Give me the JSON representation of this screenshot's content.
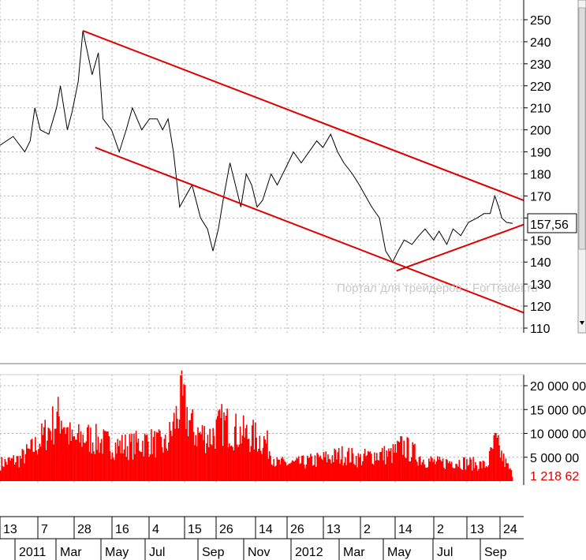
{
  "watermark": "Портал для трейдеров - ForTrader.ru",
  "price_tick_labels": [
    "250",
    "240",
    "230",
    "220",
    "210",
    "200",
    "190",
    "180",
    "170",
    "160",
    "150",
    "140",
    "130",
    "120",
    "110"
  ],
  "volume_tick_labels": [
    "20 000 00",
    "15 000 00",
    "10 000 00",
    "5 000 00"
  ],
  "current_price_label": "157,56",
  "current_volume_label": "1 218 62",
  "day_tick_labels": [
    "13",
    "7",
    "28",
    "16",
    "4",
    "15",
    "26",
    "14",
    "26",
    "13",
    "2",
    "14",
    "2",
    "13",
    "24"
  ],
  "month_labels": [
    "2011",
    "Mar",
    "May",
    "Jul",
    "Sep",
    "Nov",
    "2012",
    "Mar",
    "May",
    "Jul",
    "Sep"
  ],
  "colors": {
    "price_line": "#000000",
    "trend_line": "#e00000",
    "volume_bar": "#ff0000",
    "grid": "#b0b0b0",
    "label_bg": "#ff0000"
  },
  "chart_data": [
    {
      "type": "line",
      "x_range": [
        "2010-12-13",
        "2012-10-05"
      ],
      "ylim": [
        110,
        252
      ],
      "grid": true,
      "series": [
        {
          "values": [
            [
              "2010-12-13",
              193
            ],
            [
              "2010-12-30",
              197
            ],
            [
              "2011-01-14",
              190
            ],
            [
              "2011-01-21",
              195
            ],
            [
              "2011-01-27",
              210
            ],
            [
              "2011-02-03",
              200
            ],
            [
              "2011-02-14",
              198
            ],
            [
              "2011-02-24",
              210
            ],
            [
              "2011-03-01",
              220
            ],
            [
              "2011-03-10",
              200
            ],
            [
              "2011-03-16",
              208
            ],
            [
              "2011-03-24",
              222
            ],
            [
              "2011-03-30",
              245
            ],
            [
              "2011-04-05",
              235
            ],
            [
              "2011-04-11",
              225
            ],
            [
              "2011-04-19",
              235
            ],
            [
              "2011-04-25",
              205
            ],
            [
              "2011-05-06",
              200
            ],
            [
              "2011-05-16",
              190
            ],
            [
              "2011-05-25",
              200
            ],
            [
              "2011-06-02",
              210
            ],
            [
              "2011-06-14",
              200
            ],
            [
              "2011-06-24",
              205
            ],
            [
              "2011-07-04",
              205
            ],
            [
              "2011-07-11",
              200
            ],
            [
              "2011-07-18",
              205
            ],
            [
              "2011-07-25",
              190
            ],
            [
              "2011-08-02",
              165
            ],
            [
              "2011-08-10",
              170
            ],
            [
              "2011-08-18",
              175
            ],
            [
              "2011-08-29",
              160
            ],
            [
              "2011-09-07",
              155
            ],
            [
              "2011-09-14",
              145
            ],
            [
              "2011-09-21",
              155
            ],
            [
              "2011-09-28",
              170
            ],
            [
              "2011-10-06",
              185
            ],
            [
              "2011-10-13",
              175
            ],
            [
              "2011-10-20",
              165
            ],
            [
              "2011-10-27",
              180
            ],
            [
              "2011-11-03",
              175
            ],
            [
              "2011-11-10",
              165
            ],
            [
              "2011-11-17",
              168
            ],
            [
              "2011-11-28",
              180
            ],
            [
              "2011-12-06",
              175
            ],
            [
              "2011-12-16",
              182
            ],
            [
              "2011-12-27",
              190
            ],
            [
              "2012-01-06",
              185
            ],
            [
              "2012-01-16",
              190
            ],
            [
              "2012-01-26",
              195
            ],
            [
              "2012-02-03",
              192
            ],
            [
              "2012-02-13",
              198
            ],
            [
              "2012-02-22",
              190
            ],
            [
              "2012-03-01",
              185
            ],
            [
              "2012-03-12",
              180
            ],
            [
              "2012-03-21",
              175
            ],
            [
              "2012-03-29",
              170
            ],
            [
              "2012-04-06",
              165
            ],
            [
              "2012-04-16",
              160
            ],
            [
              "2012-04-24",
              145
            ],
            [
              "2012-05-03",
              140
            ],
            [
              "2012-05-10",
              145
            ],
            [
              "2012-05-18",
              150
            ],
            [
              "2012-05-28",
              148
            ],
            [
              "2012-06-06",
              152
            ],
            [
              "2012-06-14",
              155
            ],
            [
              "2012-06-25",
              150
            ],
            [
              "2012-07-02",
              154
            ],
            [
              "2012-07-12",
              148
            ],
            [
              "2012-07-20",
              155
            ],
            [
              "2012-07-30",
              152
            ],
            [
              "2012-08-09",
              158
            ],
            [
              "2012-08-20",
              160
            ],
            [
              "2012-08-29",
              162
            ],
            [
              "2012-09-06",
              162
            ],
            [
              "2012-09-12",
              170
            ],
            [
              "2012-09-17",
              165
            ],
            [
              "2012-09-21",
              160
            ],
            [
              "2012-09-27",
              158
            ],
            [
              "2012-10-05",
              157.56
            ]
          ]
        }
      ],
      "trend_lines": [
        {
          "from": [
            "2011-03-30",
            245
          ],
          "to": [
            "2012-10-05",
            168
          ]
        },
        {
          "from": [
            "2011-04-15",
            192
          ],
          "to": [
            "2012-10-05",
            117
          ]
        },
        {
          "from": [
            "2012-05-08",
            136
          ],
          "to": [
            "2012-10-05",
            157
          ]
        }
      ]
    },
    {
      "type": "bar",
      "x_range": [
        "2010-12-13",
        "2012-10-05"
      ],
      "ylim": [
        0,
        22000000
      ],
      "grid": true,
      "series": [
        {
          "values": [
            [
              "2010-12-13",
              4000000
            ],
            [
              "2011-01-07",
              5000000
            ],
            [
              "2011-01-28",
              8000000
            ],
            [
              "2011-02-10",
              11000000
            ],
            [
              "2011-03-01",
              15000000
            ],
            [
              "2011-03-15",
              9000000
            ],
            [
              "2011-04-01",
              10000000
            ],
            [
              "2011-04-20",
              9000000
            ],
            [
              "2011-05-10",
              8000000
            ],
            [
              "2011-06-01",
              8000000
            ],
            [
              "2011-06-20",
              9000000
            ],
            [
              "2011-07-15",
              8000000
            ],
            [
              "2011-08-04",
              18000000
            ],
            [
              "2011-08-20",
              11000000
            ],
            [
              "2011-09-10",
              10000000
            ],
            [
              "2011-09-26",
              13000000
            ],
            [
              "2011-10-15",
              11000000
            ],
            [
              "2011-11-05",
              10000000
            ],
            [
              "2011-11-20",
              9000000
            ],
            [
              "2011-12-05",
              4000000
            ],
            [
              "2012-01-01",
              4000000
            ],
            [
              "2012-02-01",
              5000000
            ],
            [
              "2012-03-01",
              6000000
            ],
            [
              "2012-03-20",
              5000000
            ],
            [
              "2012-04-10",
              6000000
            ],
            [
              "2012-05-01",
              6000000
            ],
            [
              "2012-05-15",
              8000000
            ],
            [
              "2012-06-10",
              5000000
            ],
            [
              "2012-07-01",
              4000000
            ],
            [
              "2012-07-20",
              4500000
            ],
            [
              "2012-08-10",
              4000000
            ],
            [
              "2012-09-01",
              3500000
            ],
            [
              "2012-09-12",
              9000000
            ],
            [
              "2012-09-22",
              5000000
            ],
            [
              "2012-10-05",
              1218620
            ]
          ]
        }
      ]
    }
  ]
}
